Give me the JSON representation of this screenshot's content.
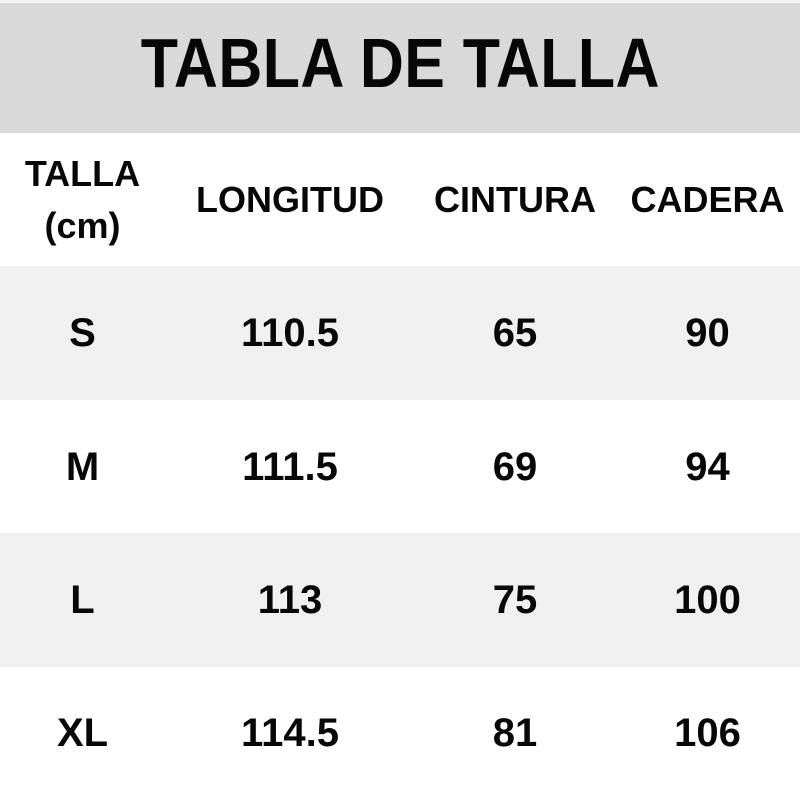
{
  "title": "TABLA DE TALLA",
  "header": {
    "talla_line1": "TALLA",
    "talla_line2": "(cm)",
    "longitud": "LONGITUD",
    "cintura": "CINTURA",
    "cadera": "CADERA"
  },
  "colors": {
    "title_band_background": "#d9d9d9",
    "top_strip": "#f5f5f5",
    "row_striped_background": "#f0f0f0",
    "row_plain_background": "#ffffff",
    "text": "#070707"
  },
  "chart_data": {
    "type": "table",
    "title": "TABLA DE TALLA",
    "unit": "cm",
    "columns": [
      "TALLA (cm)",
      "LONGITUD",
      "CINTURA",
      "CADERA"
    ],
    "rows": [
      {
        "TALLA": "S",
        "LONGITUD": 110.5,
        "CINTURA": 65,
        "CADERA": 90
      },
      {
        "TALLA": "M",
        "LONGITUD": 111.5,
        "CINTURA": 69,
        "CADERA": 94
      },
      {
        "TALLA": "L",
        "LONGITUD": 113,
        "CINTURA": 75,
        "CADERA": 100
      },
      {
        "TALLA": "XL",
        "LONGITUD": 114.5,
        "CINTURA": 81,
        "CADERA": 106
      }
    ]
  }
}
